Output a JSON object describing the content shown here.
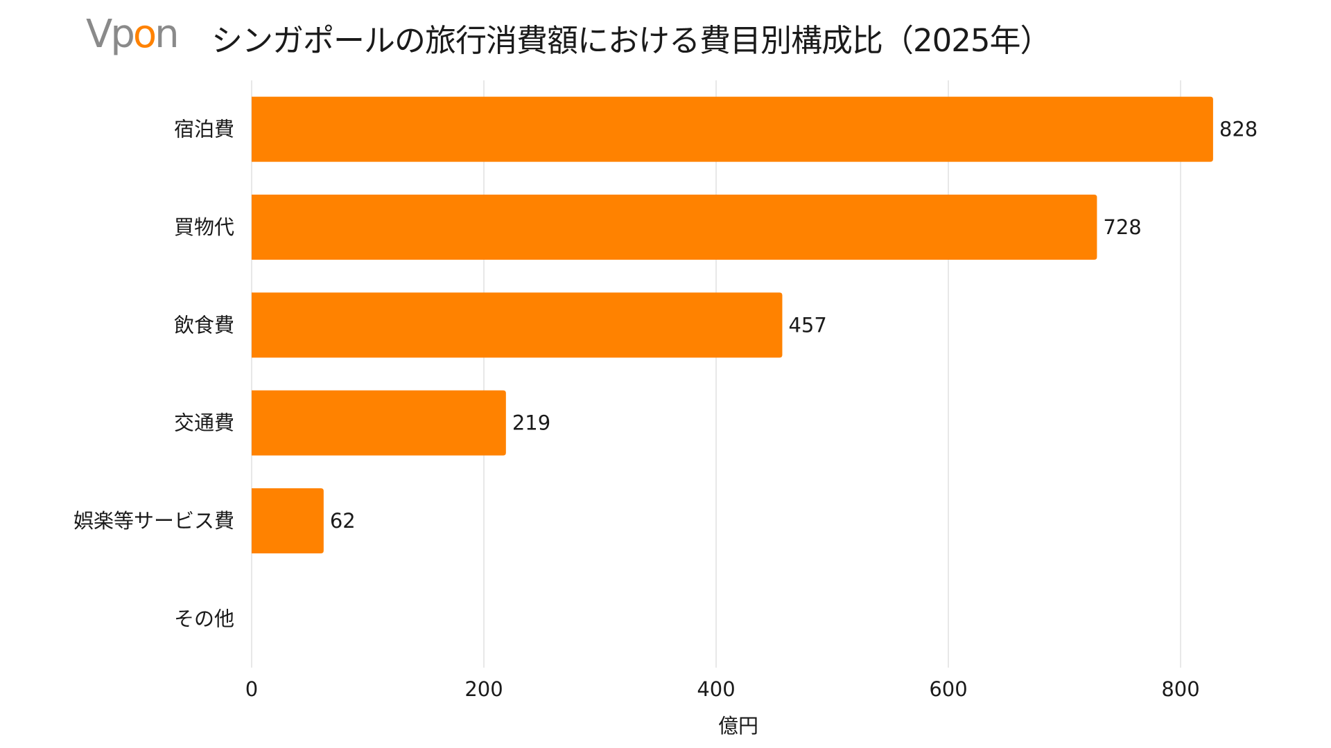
{
  "logo": {
    "text": "Vpon",
    "colors": {
      "V": "#8a8a8a",
      "p": "#8a8a8a",
      "o": "#ff8200",
      "n": "#8a8a8a"
    }
  },
  "chart_data": {
    "type": "bar",
    "orientation": "horizontal",
    "title": "シンガポールの旅行消費額における費目別構成比（2025年）",
    "categories": [
      "宿泊費",
      "買物代",
      "飲食費",
      "交通費",
      "娯楽等サービス費",
      "その他"
    ],
    "values": [
      828,
      728,
      457,
      219,
      62,
      null
    ],
    "data_labels": [
      "828",
      "728",
      "457",
      "219",
      "62",
      ""
    ],
    "xlabel": "億円",
    "ylabel": "",
    "xlim": [
      0,
      800
    ],
    "xticks": [
      "0",
      "200",
      "400",
      "600",
      "800"
    ],
    "grid": "vertical",
    "bar_color": "#ff8200",
    "grid_color": "#d9d9d9"
  }
}
